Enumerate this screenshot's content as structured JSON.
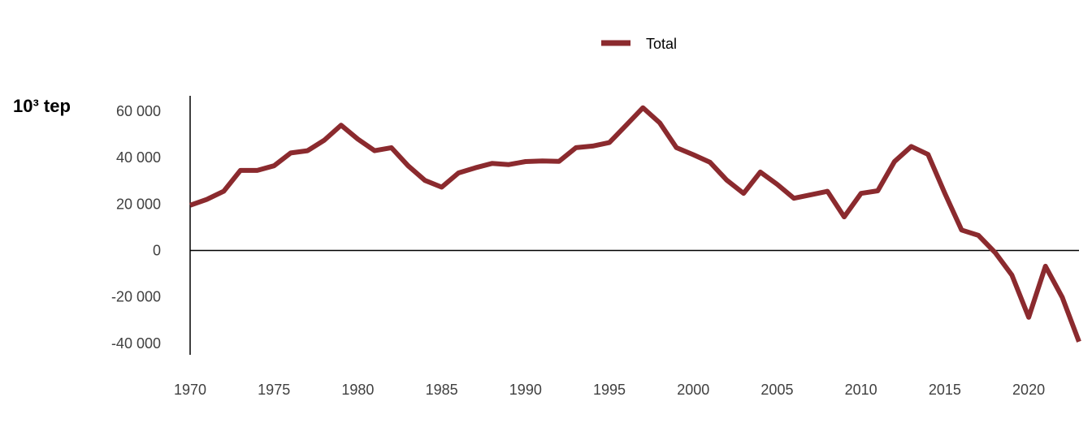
{
  "chart_data": {
    "type": "line",
    "unit_label": "10³ tep",
    "legend": {
      "position": "top-center",
      "entries": [
        "Total"
      ]
    },
    "x": [
      1970,
      1971,
      1972,
      1973,
      1974,
      1975,
      1976,
      1977,
      1978,
      1979,
      1980,
      1981,
      1982,
      1983,
      1984,
      1985,
      1986,
      1987,
      1988,
      1989,
      1990,
      1991,
      1992,
      1993,
      1994,
      1995,
      1996,
      1997,
      1998,
      1999,
      2000,
      2001,
      2002,
      2003,
      2004,
      2005,
      2006,
      2007,
      2008,
      2009,
      2010,
      2011,
      2012,
      2013,
      2014,
      2015,
      2016,
      2017,
      2018,
      2019,
      2020,
      2021,
      2022,
      2023
    ],
    "series": [
      {
        "name": "Total",
        "color": "#8B2A2E",
        "values": [
          19500,
          22000,
          25500,
          34500,
          34500,
          36500,
          42000,
          43000,
          47500,
          54000,
          48000,
          43000,
          44300,
          36500,
          30200,
          27300,
          33400,
          35600,
          37500,
          37000,
          38300,
          38600,
          38400,
          44300,
          45000,
          46500,
          54000,
          61500,
          55000,
          44300,
          41300,
          38000,
          30300,
          24600,
          33800,
          28500,
          22500,
          24000,
          25500,
          14500,
          24600,
          25700,
          38300,
          44800,
          41400,
          24600,
          8800,
          6500,
          -900,
          -10600,
          -28800,
          -6800,
          -20200,
          -39300
        ]
      }
    ],
    "y_ticks": [
      "60 000",
      "40 000",
      "20 000",
      "0",
      "-20 000",
      "-40 000"
    ],
    "y_tick_values": [
      60000,
      40000,
      20000,
      0,
      -20000,
      -40000
    ],
    "x_ticks": [
      "1970",
      "1975",
      "1980",
      "1985",
      "1990",
      "1995",
      "2000",
      "2005",
      "2010",
      "2015",
      "2020"
    ],
    "x_tick_values": [
      1970,
      1975,
      1980,
      1985,
      1990,
      1995,
      2000,
      2005,
      2010,
      2015,
      2020
    ],
    "xlim": [
      1970,
      2023
    ],
    "ylim": [
      -44000,
      66000
    ],
    "grid": false
  }
}
